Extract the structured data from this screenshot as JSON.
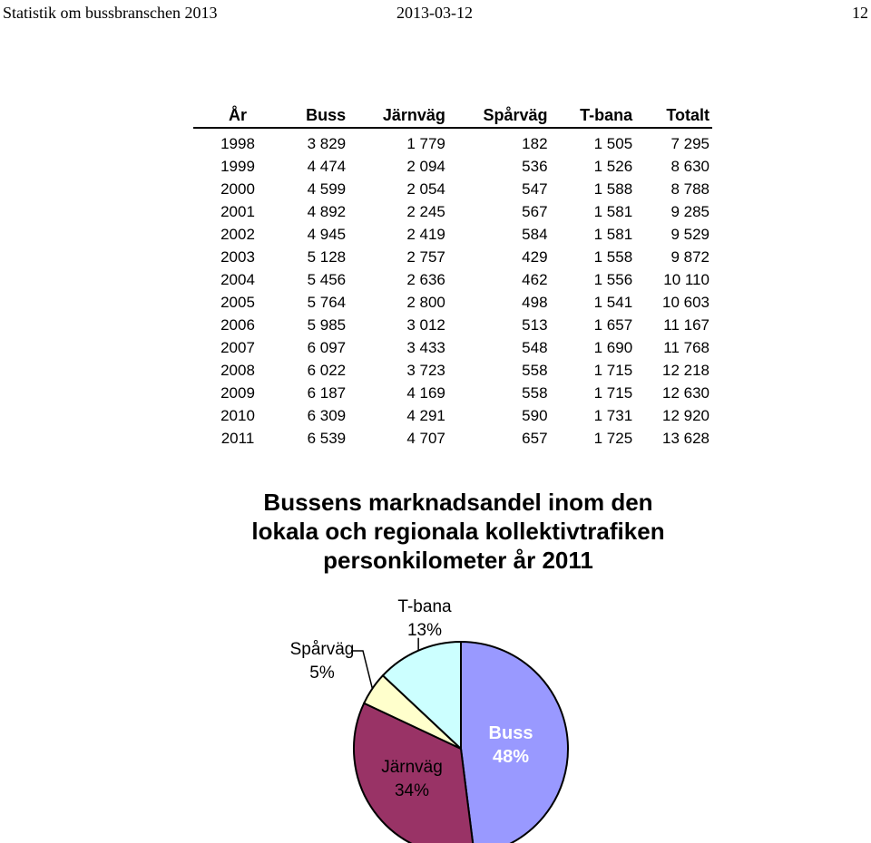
{
  "header": {
    "left": "Statistik om bussbranschen 2013",
    "date": "2013-03-12",
    "page": "12"
  },
  "table": {
    "columns": [
      "År",
      "Buss",
      "Järnväg",
      "Spårväg",
      "T-bana",
      "Totalt"
    ],
    "rows": [
      [
        "1998",
        "3 829",
        "1 779",
        "182",
        "1 505",
        "7 295"
      ],
      [
        "1999",
        "4 474",
        "2 094",
        "536",
        "1 526",
        "8 630"
      ],
      [
        "2000",
        "4 599",
        "2 054",
        "547",
        "1 588",
        "8 788"
      ],
      [
        "2001",
        "4 892",
        "2 245",
        "567",
        "1 581",
        "9 285"
      ],
      [
        "2002",
        "4 945",
        "2 419",
        "584",
        "1 581",
        "9 529"
      ],
      [
        "2003",
        "5 128",
        "2 757",
        "429",
        "1 558",
        "9 872"
      ],
      [
        "2004",
        "5 456",
        "2 636",
        "462",
        "1 556",
        "10 110"
      ],
      [
        "2005",
        "5 764",
        "2 800",
        "498",
        "1 541",
        "10 603"
      ],
      [
        "2006",
        "5 985",
        "3 012",
        "513",
        "1 657",
        "11 167"
      ],
      [
        "2007",
        "6 097",
        "3 433",
        "548",
        "1 690",
        "11 768"
      ],
      [
        "2008",
        "6 022",
        "3 723",
        "558",
        "1 715",
        "12 218"
      ],
      [
        "2009",
        "6 187",
        "4 169",
        "558",
        "1 715",
        "12 630"
      ],
      [
        "2010",
        "6 309",
        "4 291",
        "590",
        "1 731",
        "12 920"
      ],
      [
        "2011",
        "6 539",
        "4 707",
        "657",
        "1 725",
        "13 628"
      ]
    ]
  },
  "chart_data": {
    "type": "pie",
    "title_lines": [
      "Bussens marknadsandel inom den",
      "lokala och regionala kollektivtrafiken",
      "personkilometer år 2011"
    ],
    "slices": [
      {
        "name": "Buss",
        "value": 48,
        "label": "48%",
        "color": "#9999ff"
      },
      {
        "name": "Järnväg",
        "value": 34,
        "label": "34%",
        "color": "#993366"
      },
      {
        "name": "Spårväg",
        "value": 5,
        "label": "5%",
        "color": "#ffffcc"
      },
      {
        "name": "T-bana",
        "value": 13,
        "label": "13%",
        "color": "#ccffff"
      }
    ]
  }
}
